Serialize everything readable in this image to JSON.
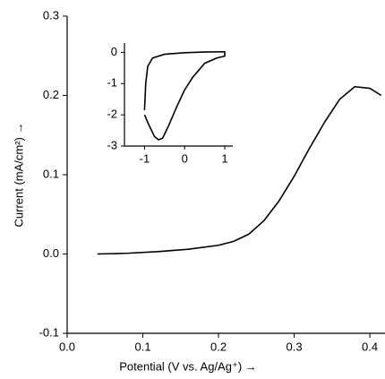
{
  "chart_data": [
    {
      "type": "line",
      "ylabel": "Current (mA/cm²) →",
      "xlabel": "Potential (V vs. Ag/Ag⁺) →",
      "xlim": [
        0,
        0.42
      ],
      "ylim": [
        -0.1,
        0.3
      ],
      "xticks": [
        {
          "value": 0,
          "label": "0.0"
        },
        0.1,
        0.2,
        0.3,
        0.4
      ],
      "yticks": [
        -0.1,
        {
          "value": 0,
          "label": "0.0"
        },
        0.1,
        0.2,
        0.3
      ],
      "series": [
        {
          "color": "#000000",
          "x": [
            0.04,
            0.08,
            0.12,
            0.16,
            0.2,
            0.22,
            0.24,
            0.26,
            0.28,
            0.3,
            0.32,
            0.34,
            0.36,
            0.38,
            0.4,
            0.415
          ],
          "values": [
            0,
            0.001,
            0.003,
            0.006,
            0.011,
            0.016,
            0.025,
            0.042,
            0.067,
            0.098,
            0.133,
            0.166,
            0.195,
            0.211,
            0.209,
            0.2
          ]
        }
      ]
    },
    {
      "type": "line",
      "xlim": [
        -1.5,
        1.2
      ],
      "ylim": [
        -3,
        0.3
      ],
      "xticks": [
        -1,
        0,
        1
      ],
      "yticks": [
        -3,
        -2,
        -1,
        0
      ],
      "series": [
        {
          "color": "#000000",
          "x": [
            -1,
            -0.97,
            -0.92,
            -0.8,
            -0.5,
            0,
            0.5,
            1,
            1,
            0.8,
            0.5,
            0.2,
            0,
            -0.2,
            -0.4,
            -0.55,
            -0.65,
            -0.75,
            -0.9,
            -1
          ],
          "values": [
            -1.85,
            -1.0,
            -0.45,
            -0.18,
            -0.06,
            -0.01,
            0.01,
            0.02,
            -0.12,
            -0.18,
            -0.35,
            -0.8,
            -1.2,
            -1.75,
            -2.35,
            -2.75,
            -2.8,
            -2.7,
            -2.3,
            -2.0
          ]
        }
      ]
    }
  ]
}
